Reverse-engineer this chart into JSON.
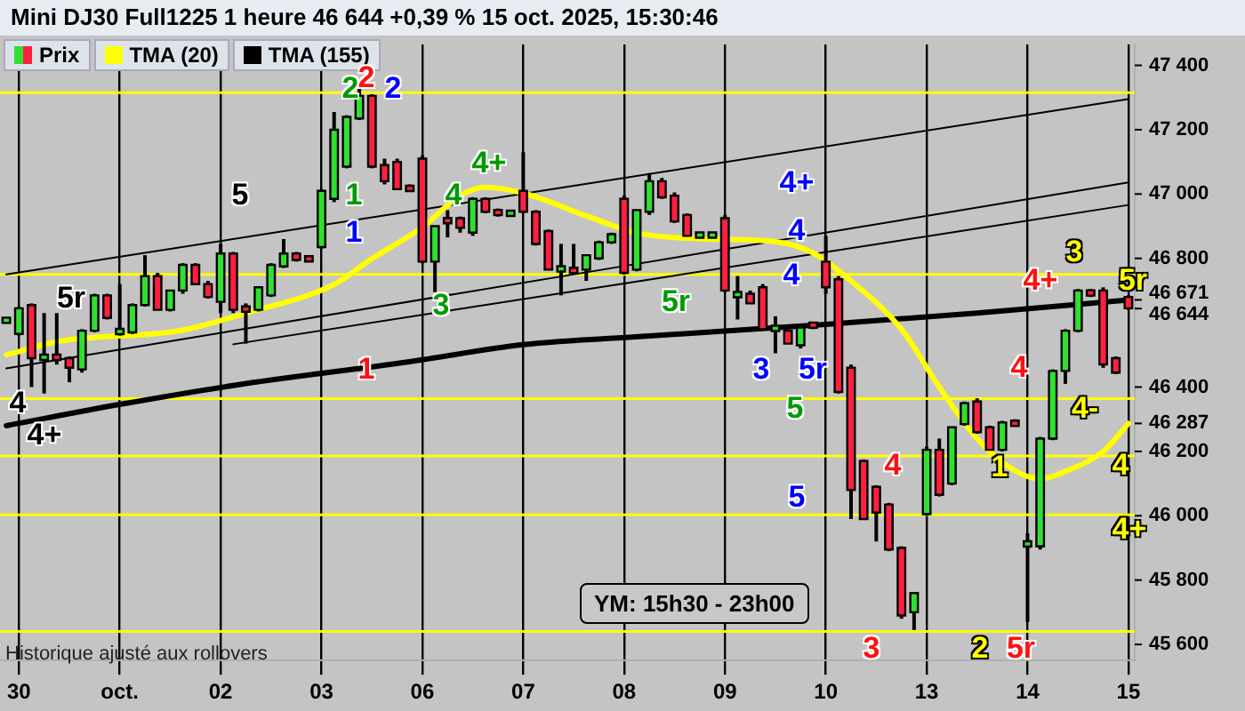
{
  "chart_data": {
    "type": "candlestick",
    "title": "Mini DJ30 Full1225 1 heure 46 644 +0,39 % 15 oct. 2025, 15:30:46",
    "categories": [
      null,
      "30",
      null,
      null,
      null,
      null,
      null,
      null,
      null,
      "oct.",
      null,
      null,
      null,
      null,
      null,
      null,
      null,
      "02",
      null,
      null,
      null,
      null,
      null,
      null,
      null,
      "03",
      null,
      null,
      null,
      null,
      null,
      null,
      null,
      "06",
      null,
      null,
      null,
      null,
      null,
      null,
      null,
      "07",
      null,
      null,
      null,
      null,
      null,
      null,
      null,
      "08",
      null,
      null,
      null,
      null,
      null,
      null,
      null,
      "09",
      null,
      null,
      null,
      null,
      null,
      null,
      null,
      "10",
      null,
      null,
      null,
      null,
      null,
      null,
      null,
      "13",
      null,
      null,
      null,
      null,
      null,
      null,
      null,
      "14",
      null,
      null,
      null,
      null,
      null,
      null,
      null,
      "15"
    ],
    "series": [
      {
        "name": "Prix",
        "type": "candlestick",
        "ohlc": [
          [
            46605,
            46615,
            46600,
            46610
          ],
          [
            46565,
            46650,
            46560,
            46645
          ],
          [
            46655,
            46660,
            46400,
            46490
          ],
          [
            46490,
            46630,
            46380,
            46495
          ],
          [
            46495,
            46630,
            46470,
            46490
          ],
          [
            46490,
            46495,
            46415,
            46460
          ],
          [
            46455,
            46580,
            46445,
            46575
          ],
          [
            46575,
            46690,
            46570,
            46685
          ],
          [
            46685,
            46690,
            46610,
            46615
          ],
          [
            46570,
            46720,
            46560,
            46575
          ],
          [
            46570,
            46660,
            46565,
            46655
          ],
          [
            46655,
            46810,
            46650,
            46745
          ],
          [
            46745,
            46755,
            46640,
            46640
          ],
          [
            46640,
            46700,
            46635,
            46700
          ],
          [
            46700,
            46785,
            46690,
            46780
          ],
          [
            46780,
            46785,
            46720,
            46720
          ],
          [
            46720,
            46730,
            46675,
            46680
          ],
          [
            46665,
            46845,
            46630,
            46815
          ],
          [
            46815,
            46820,
            46630,
            46640
          ],
          [
            46645,
            46660,
            46535,
            46640
          ],
          [
            46640,
            46710,
            46635,
            46710
          ],
          [
            46685,
            46785,
            46680,
            46780
          ],
          [
            46775,
            46860,
            46770,
            46815
          ],
          [
            46815,
            46820,
            46790,
            46795
          ],
          [
            46800,
            46805,
            46790,
            46797
          ],
          [
            46835,
            47015,
            46830,
            47010
          ],
          [
            46985,
            47255,
            46975,
            47200
          ],
          [
            47085,
            47245,
            47080,
            47240
          ],
          [
            47235,
            47330,
            47230,
            47305
          ],
          [
            47305,
            47310,
            47080,
            47085
          ],
          [
            47090,
            47110,
            47030,
            47040
          ],
          [
            47100,
            47110,
            47015,
            47015
          ],
          [
            47020,
            47030,
            47010,
            47015
          ],
          [
            47110,
            47120,
            46785,
            46790
          ],
          [
            46790,
            46900,
            46695,
            46900
          ],
          [
            46925,
            46950,
            46865,
            46910
          ],
          [
            46925,
            46930,
            46880,
            46895
          ],
          [
            46880,
            46990,
            46870,
            46985
          ],
          [
            46985,
            46990,
            46940,
            46945
          ],
          [
            46950,
            46955,
            46930,
            46935
          ],
          [
            46935,
            46950,
            46930,
            46945
          ],
          [
            47010,
            47130,
            46940,
            46945
          ],
          [
            46945,
            46950,
            46840,
            46845
          ],
          [
            46885,
            46890,
            46765,
            46765
          ],
          [
            46765,
            46845,
            46685,
            46770
          ],
          [
            46765,
            46845,
            46755,
            46760
          ],
          [
            46765,
            46810,
            46730,
            46810
          ],
          [
            46800,
            46855,
            46795,
            46850
          ],
          [
            46850,
            46880,
            46845,
            46875
          ],
          [
            46985,
            46995,
            46750,
            46755
          ],
          [
            46765,
            46950,
            46760,
            46950
          ],
          [
            46945,
            47065,
            46935,
            47040
          ],
          [
            47040,
            47050,
            46985,
            46990
          ],
          [
            46995,
            47005,
            46910,
            46915
          ],
          [
            46935,
            46940,
            46870,
            46870
          ],
          [
            46870,
            46880,
            46865,
            46875
          ],
          [
            46870,
            46880,
            46870,
            46875
          ],
          [
            46925,
            46935,
            46695,
            46700
          ],
          [
            46685,
            46745,
            46610,
            46690
          ],
          [
            46690,
            46700,
            46660,
            46660
          ],
          [
            46710,
            46720,
            46580,
            46580
          ],
          [
            46580,
            46620,
            46505,
            46585
          ],
          [
            46575,
            46580,
            46535,
            46535
          ],
          [
            46530,
            46590,
            46520,
            46585
          ],
          [
            46595,
            46600,
            46580,
            46590
          ],
          [
            46790,
            46870,
            46690,
            46710
          ],
          [
            46735,
            46745,
            46380,
            46385
          ],
          [
            46460,
            46470,
            45990,
            46080
          ],
          [
            46170,
            46175,
            45990,
            45990
          ],
          [
            46090,
            46095,
            45920,
            46010
          ],
          [
            46035,
            46040,
            45890,
            45895
          ],
          [
            45900,
            45905,
            45680,
            45690
          ],
          [
            45700,
            45760,
            45645,
            45760
          ],
          [
            46005,
            46215,
            46000,
            46205
          ],
          [
            46205,
            46240,
            46060,
            46065
          ],
          [
            46100,
            46275,
            46095,
            46275
          ],
          [
            46285,
            46355,
            46280,
            46350
          ],
          [
            46355,
            46365,
            46255,
            46260
          ],
          [
            46275,
            46280,
            46205,
            46205
          ],
          [
            46205,
            46295,
            46200,
            46290
          ],
          [
            46290,
            46300,
            46280,
            46285
          ],
          [
            45910,
            45945,
            45670,
            45915
          ],
          [
            45905,
            46245,
            45895,
            46240
          ],
          [
            46240,
            46455,
            46235,
            46450
          ],
          [
            46450,
            46580,
            46410,
            46575
          ],
          [
            46575,
            46705,
            46570,
            46700
          ],
          [
            46700,
            46705,
            46680,
            46685
          ],
          [
            46700,
            46710,
            46460,
            46470
          ],
          [
            46490,
            46495,
            46440,
            46445
          ],
          [
            46680,
            46685,
            46640,
            46645
          ]
        ]
      },
      {
        "name": "TMA (20)",
        "type": "line",
        "color": "#ffff00",
        "values": [
          46500,
          null,
          null,
          null,
          46541,
          null,
          null,
          null,
          null,
          null,
          null,
          null,
          null,
          null,
          46577,
          null,
          null,
          null,
          null,
          46630,
          null,
          null,
          null,
          null,
          null,
          null,
          46719,
          null,
          null,
          46799,
          null,
          null,
          null,
          46897,
          null,
          null,
          46995,
          null,
          47021,
          null,
          null,
          47003,
          null,
          null,
          null,
          null,
          46932,
          null,
          null,
          null,
          46879,
          null,
          null,
          null,
          null,
          46861,
          null,
          null,
          null,
          null,
          null,
          46852,
          null,
          null,
          46817,
          null,
          null,
          46730,
          null,
          null,
          null,
          46580,
          null,
          null,
          46400,
          null,
          null,
          46240,
          null,
          null,
          46140,
          null,
          46115,
          null,
          46138,
          null,
          null,
          46200,
          null,
          46287
        ]
      },
      {
        "name": "TMA (155)",
        "type": "line",
        "color": "#000000",
        "values": [
          46280,
          null,
          null,
          null,
          null,
          null,
          null,
          null,
          null,
          46346,
          null,
          null,
          null,
          null,
          null,
          null,
          null,
          null,
          46405,
          null,
          null,
          null,
          null,
          null,
          null,
          null,
          null,
          null,
          null,
          null,
          null,
          null,
          46479,
          null,
          null,
          null,
          null,
          null,
          null,
          null,
          null,
          46532,
          null,
          null,
          null,
          null,
          null,
          null,
          null,
          null,
          null,
          46559,
          null,
          null,
          null,
          null,
          null,
          null,
          null,
          null,
          null,
          null,
          null,
          null,
          null,
          46595,
          null,
          null,
          null,
          null,
          null,
          null,
          null,
          null,
          null,
          null,
          null,
          46630,
          null,
          null,
          null,
          null,
          null,
          null,
          null,
          null,
          null,
          null,
          null,
          46671
        ]
      },
      {
        "type": "line",
        "color": "#000000",
        "values": [
          46750,
          null,
          null,
          null,
          null,
          null,
          null,
          null,
          null,
          null,
          null,
          null,
          null,
          null,
          null,
          null,
          null,
          null,
          null,
          null,
          null,
          null,
          null,
          null,
          null,
          null,
          null,
          null,
          null,
          null,
          null,
          null,
          null,
          null,
          null,
          null,
          null,
          null,
          null,
          null,
          null,
          null,
          null,
          null,
          null,
          null,
          null,
          null,
          null,
          null,
          null,
          null,
          null,
          null,
          null,
          null,
          null,
          null,
          null,
          null,
          null,
          null,
          null,
          null,
          null,
          null,
          null,
          null,
          null,
          null,
          null,
          null,
          null,
          null,
          null,
          null,
          null,
          null,
          null,
          null,
          null,
          null,
          null,
          null,
          null,
          null,
          null,
          null,
          null,
          47295
        ]
      },
      {
        "type": "line",
        "color": "#000000",
        "values": [
          46458,
          null,
          null,
          null,
          null,
          null,
          null,
          null,
          null,
          null,
          null,
          null,
          null,
          null,
          null,
          null,
          null,
          null,
          null,
          null,
          null,
          null,
          null,
          null,
          null,
          null,
          null,
          null,
          null,
          null,
          null,
          null,
          null,
          null,
          null,
          null,
          null,
          null,
          null,
          null,
          null,
          null,
          null,
          null,
          null,
          null,
          null,
          null,
          null,
          null,
          null,
          null,
          null,
          null,
          null,
          null,
          null,
          null,
          null,
          null,
          null,
          null,
          null,
          null,
          null,
          null,
          null,
          null,
          null,
          null,
          null,
          null,
          null,
          null,
          null,
          null,
          null,
          null,
          null,
          null,
          null,
          null,
          null,
          null,
          null,
          null,
          null,
          null,
          null,
          47036
        ]
      },
      {
        "type": "line",
        "color": "#000000",
        "values": [
          null,
          null,
          null,
          null,
          null,
          null,
          null,
          null,
          null,
          null,
          null,
          null,
          null,
          null,
          null,
          null,
          null,
          null,
          46533,
          null,
          null,
          null,
          null,
          null,
          null,
          null,
          null,
          null,
          null,
          null,
          null,
          null,
          null,
          null,
          null,
          null,
          null,
          null,
          null,
          null,
          null,
          null,
          null,
          null,
          null,
          null,
          null,
          null,
          null,
          null,
          null,
          null,
          null,
          null,
          null,
          null,
          null,
          null,
          null,
          null,
          null,
          null,
          null,
          null,
          null,
          null,
          null,
          null,
          null,
          null,
          null,
          null,
          null,
          null,
          null,
          null,
          null,
          null,
          null,
          null,
          null,
          null,
          null,
          null,
          null,
          null,
          null,
          null,
          null,
          46966
        ]
      }
    ],
    "ylim": [
      45550,
      47465
    ],
    "yticks": [
      {
        "value": 45600,
        "label": "45 600"
      },
      {
        "value": 45800,
        "label": "45 800"
      },
      {
        "value": 46000,
        "label": "46 000"
      },
      {
        "value": 46200,
        "label": "46 200"
      },
      {
        "value": 46287,
        "label": "46 287"
      },
      {
        "value": 46400,
        "label": "46 400"
      },
      {
        "value": 46644,
        "label": "46 644"
      },
      {
        "value": 46671,
        "label": "46 671"
      },
      {
        "value": 46800,
        "label": "46 800"
      },
      {
        "value": 47000,
        "label": "47 000"
      },
      {
        "value": 47200,
        "label": "47 200"
      },
      {
        "value": 47400,
        "label": "47 400"
      }
    ],
    "ref_lines": [
      {
        "axis": "y",
        "value": 47315,
        "color": "#ffff00"
      },
      {
        "axis": "y",
        "value": 46750,
        "color": "#ffff00"
      },
      {
        "axis": "y",
        "value": 46364,
        "color": "#ffff00"
      },
      {
        "axis": "y",
        "value": 46186,
        "color": "#ffff00"
      },
      {
        "axis": "y",
        "value": 46003,
        "color": "#ffff00"
      },
      {
        "axis": "y",
        "value": 45640,
        "color": "#ffff00"
      }
    ],
    "annotations": [
      "Historique ajusté aux rollovers",
      "YM: 15h30 - 23h00",
      "2",
      "2",
      "2",
      "5",
      "1",
      "1",
      "5r",
      "4",
      "4+",
      "1",
      "4",
      "4+",
      "3",
      "5r",
      "3",
      "5r",
      "5",
      "4+",
      "4",
      "4",
      "5",
      "4",
      "3",
      "1",
      "2",
      "5r",
      "4",
      "4+",
      "3",
      "5r",
      "4-",
      "4",
      "4+"
    ],
    "legend": "top left",
    "grid": "x"
  }
}
